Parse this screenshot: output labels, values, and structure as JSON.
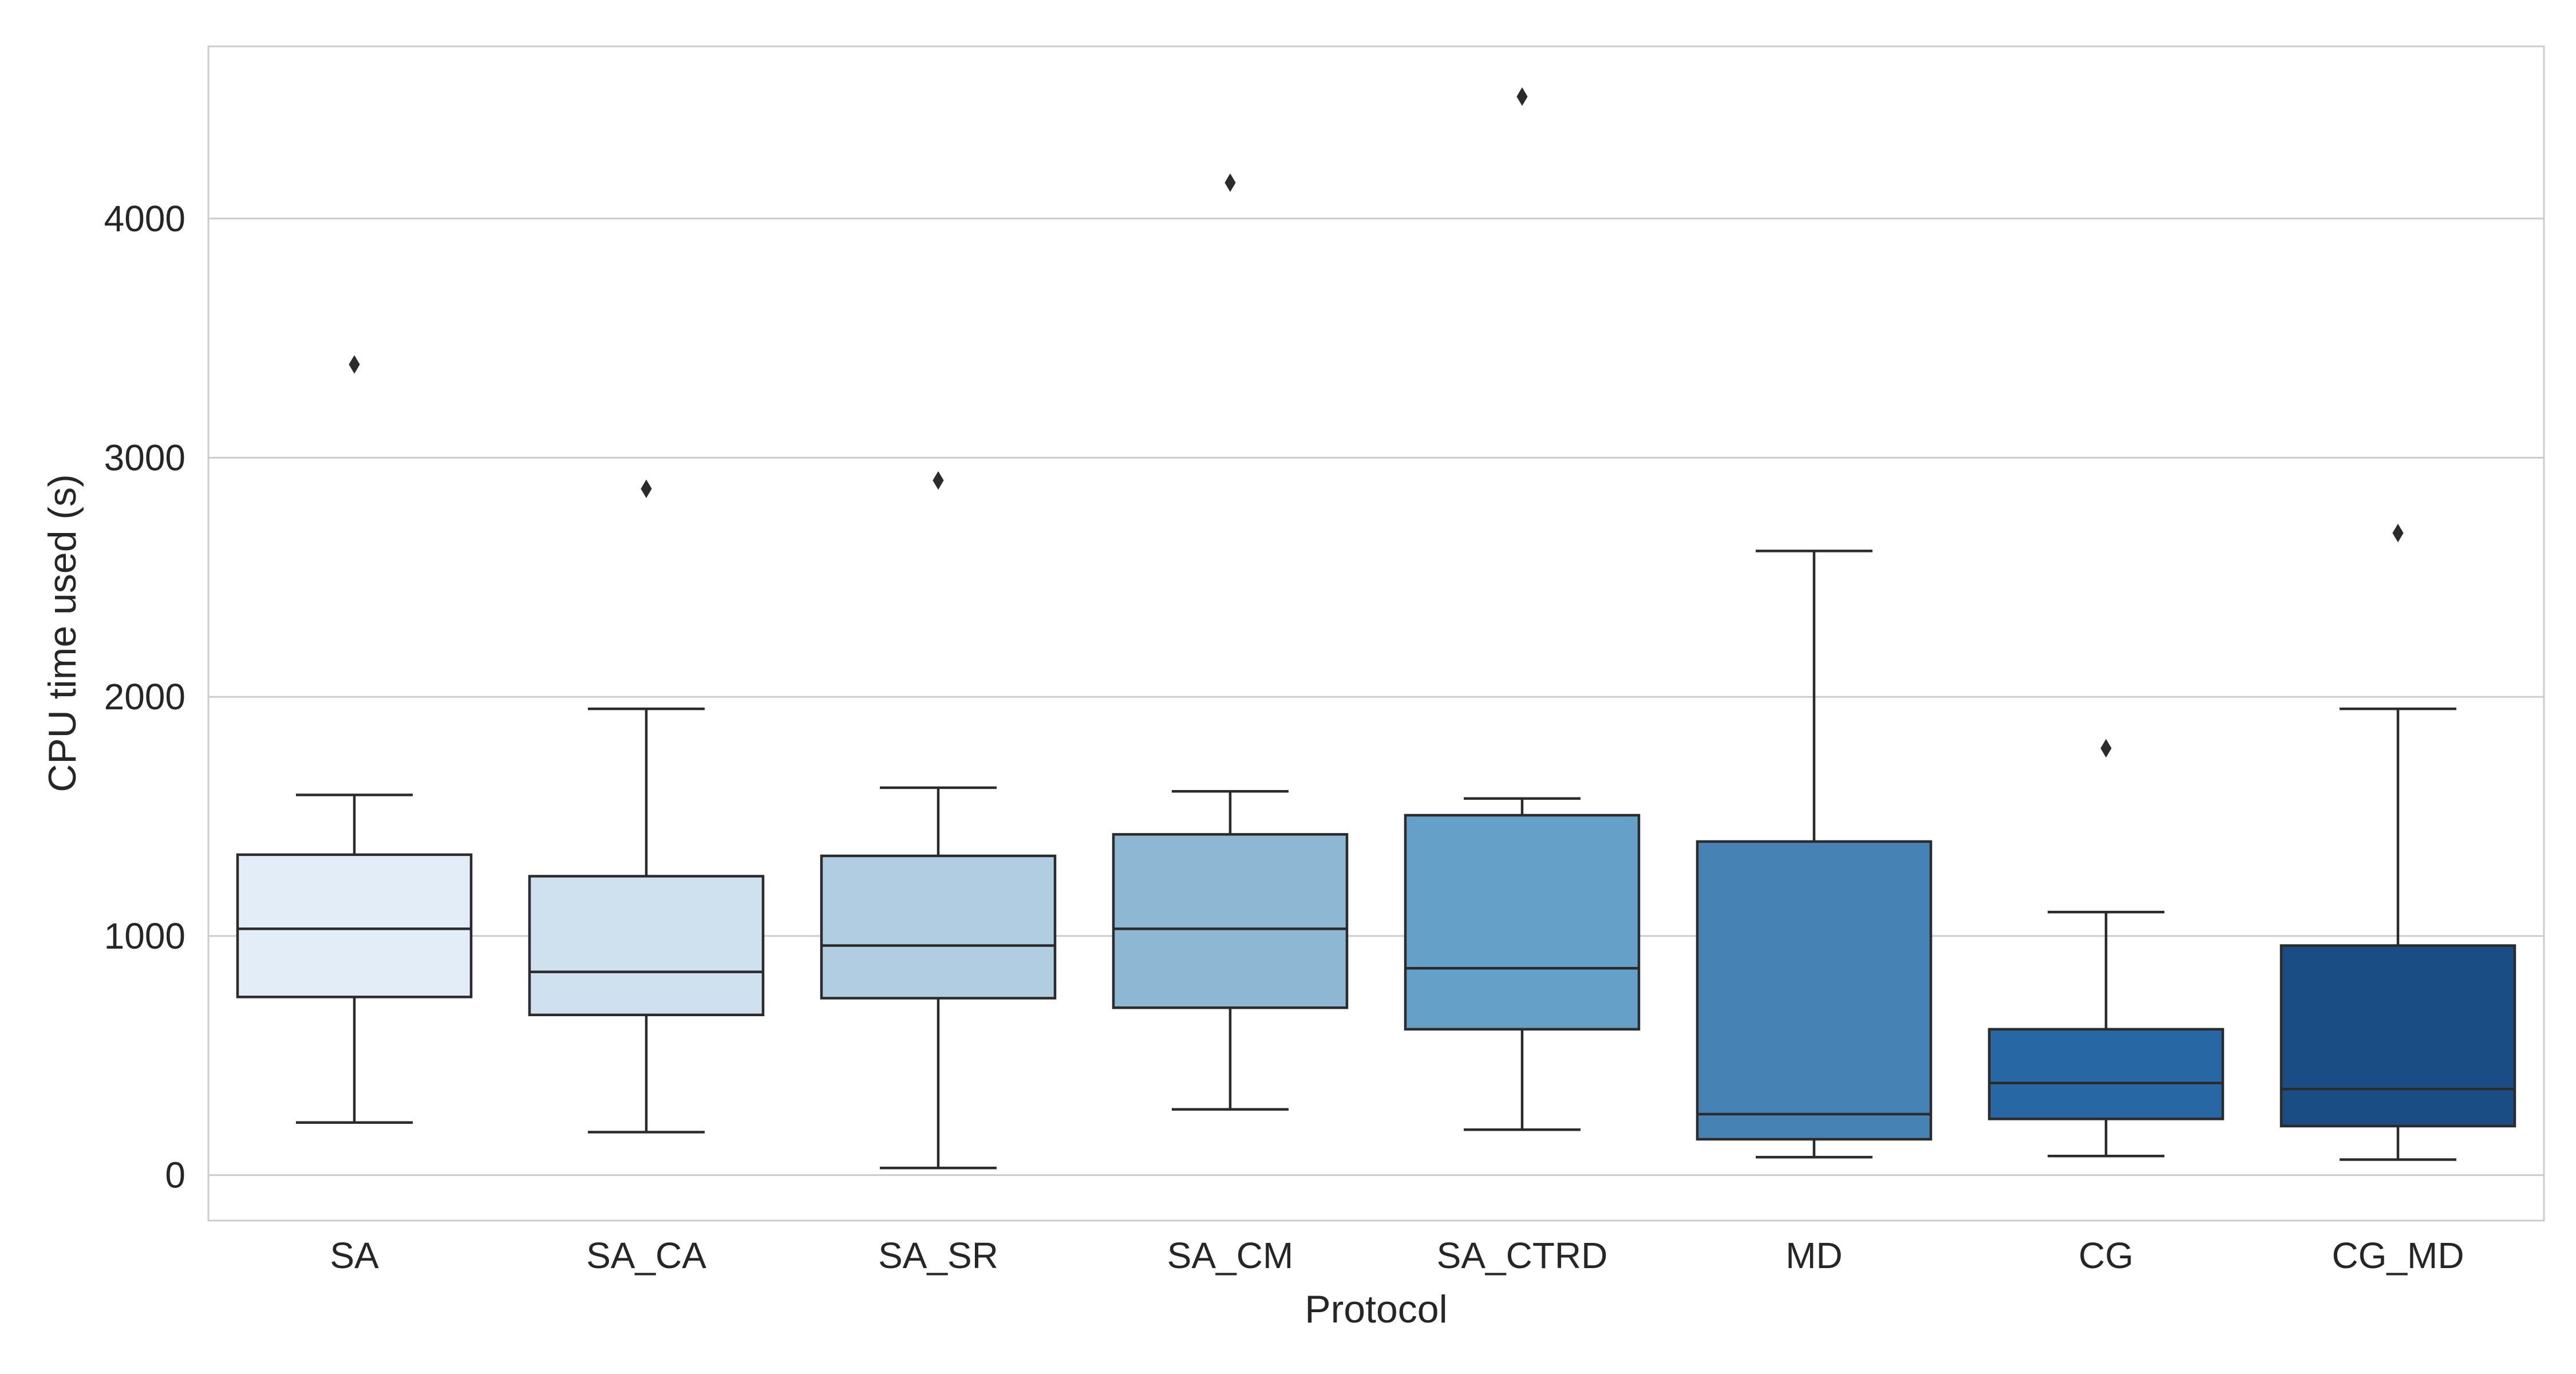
{
  "chart_data": {
    "type": "box",
    "xlabel": "Protocol",
    "ylabel": "CPU time used (s)",
    "ylim": [
      -190,
      4720
    ],
    "y_ticks": [
      0,
      1000,
      2000,
      3000,
      4000
    ],
    "grid": "horizontal",
    "categories": [
      "SA",
      "SA_CA",
      "SA_SR",
      "SA_CM",
      "SA_CTRD",
      "MD",
      "CG",
      "CG_MD"
    ],
    "box_colors": [
      "#e3edf7",
      "#cfe0ee",
      "#b0cde2",
      "#8db7d3",
      "#65a0c8",
      "#4682b4",
      "#2767a4",
      "#1a4d84"
    ],
    "line_color": "#2b2b2b",
    "boxes": [
      {
        "category": "SA",
        "whisker_low": 220,
        "q1": 745,
        "median": 1030,
        "q3": 1340,
        "whisker_high": 1590,
        "outliers": [
          3390
        ]
      },
      {
        "category": "SA_CA",
        "whisker_low": 180,
        "q1": 670,
        "median": 850,
        "q3": 1250,
        "whisker_high": 1950,
        "outliers": [
          2870
        ]
      },
      {
        "category": "SA_SR",
        "whisker_low": 30,
        "q1": 740,
        "median": 960,
        "q3": 1335,
        "whisker_high": 1620,
        "outliers": [
          2905
        ]
      },
      {
        "category": "SA_CM",
        "whisker_low": 275,
        "q1": 700,
        "median": 1030,
        "q3": 1425,
        "whisker_high": 1605,
        "outliers": [
          4150
        ]
      },
      {
        "category": "SA_CTRD",
        "whisker_low": 190,
        "q1": 610,
        "median": 865,
        "q3": 1505,
        "whisker_high": 1575,
        "outliers": [
          4510
        ]
      },
      {
        "category": "MD",
        "whisker_low": 75,
        "q1": 150,
        "median": 255,
        "q3": 1395,
        "whisker_high": 2610,
        "outliers": []
      },
      {
        "category": "CG",
        "whisker_low": 80,
        "q1": 235,
        "median": 385,
        "q3": 610,
        "whisker_high": 1100,
        "outliers": [
          1785
        ]
      },
      {
        "category": "CG_MD",
        "whisker_low": 65,
        "q1": 205,
        "median": 360,
        "q3": 960,
        "whisker_high": 1950,
        "outliers": [
          2685
        ]
      }
    ]
  }
}
